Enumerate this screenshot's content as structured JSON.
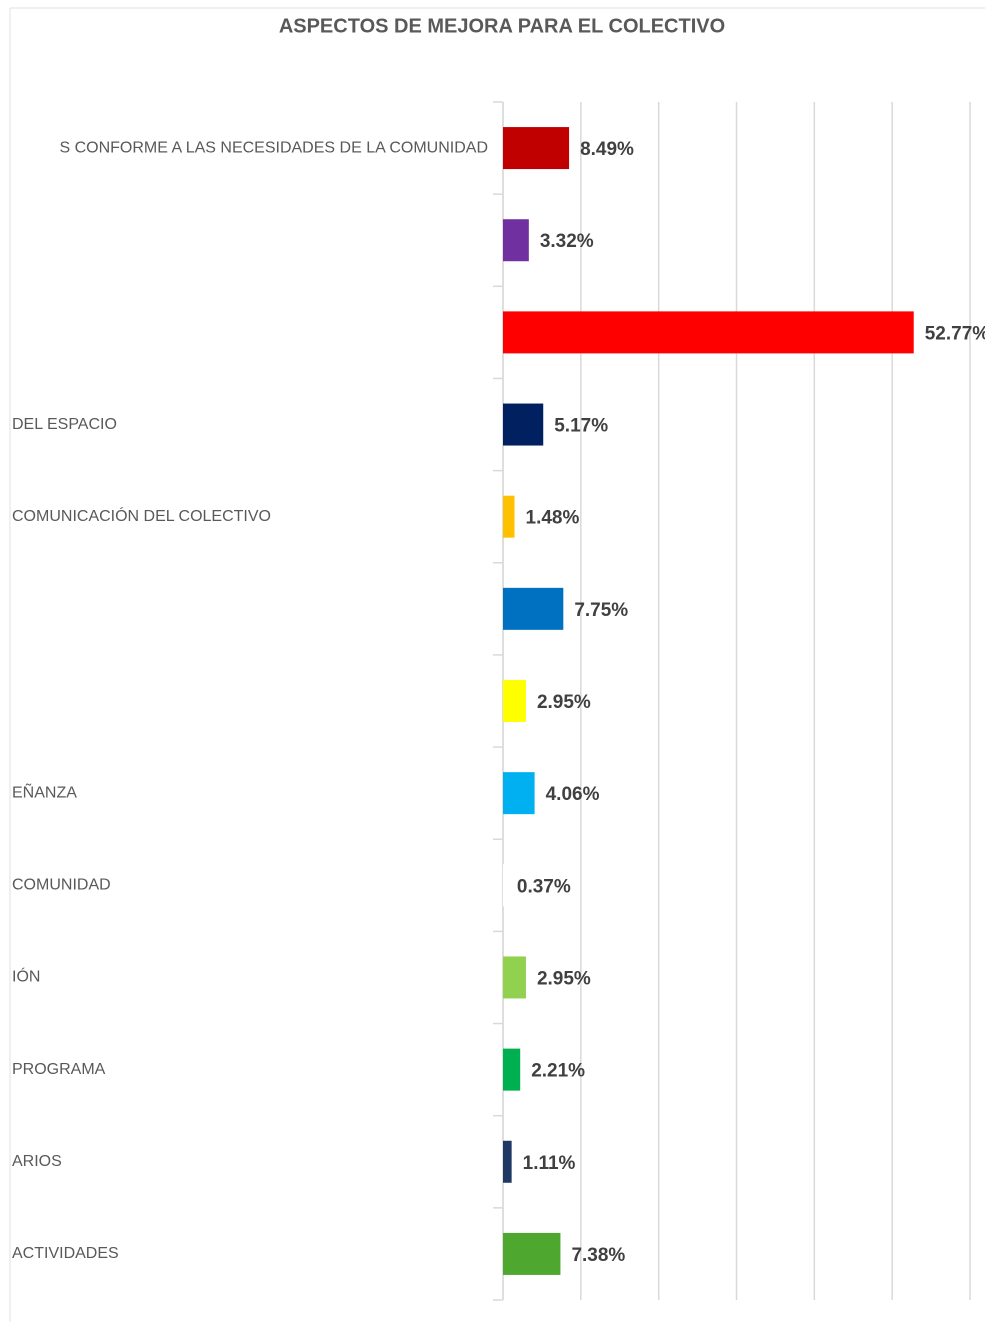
{
  "chart_data": {
    "type": "barh",
    "title": "ASPECTOS DE MEJORA PARA EL COLECTIVO",
    "categories": [
      "S CONFORME A LAS NECESIDADES DE LA COMUNIDAD",
      null,
      null,
      "DEL ESPACIO",
      "COMUNICACIÓN DEL COLECTIVO",
      null,
      null,
      "EÑANZA",
      "COMUNIDAD",
      "IÓN",
      "PROGRAMA",
      "ARIOS",
      "ACTIVIDADES"
    ],
    "values": [
      8.49,
      3.32,
      52.77,
      5.17,
      1.48,
      7.75,
      2.95,
      4.06,
      0.37,
      2.95,
      2.21,
      1.11,
      7.38
    ],
    "value_labels": [
      "8.49%",
      "3.32%",
      "52.77%",
      "5.17%",
      "1.48%",
      "7.75%",
      "2.95%",
      "4.06%",
      "0.37%",
      "2.95%",
      "2.21%",
      "1.11%",
      "7.38%"
    ],
    "colors": [
      "#c00000",
      "#7030a0",
      "#ff0000",
      "#002060",
      "#ffc000",
      "#0070c0",
      "#ffff00",
      "#00b0f0",
      "#ffffff",
      "#92d050",
      "#00b050",
      "#1f3864",
      "#4ea72e"
    ],
    "xlim": [
      0,
      60
    ],
    "xticks": [
      0,
      10,
      20,
      30,
      40,
      50,
      60
    ],
    "grid": true
  }
}
